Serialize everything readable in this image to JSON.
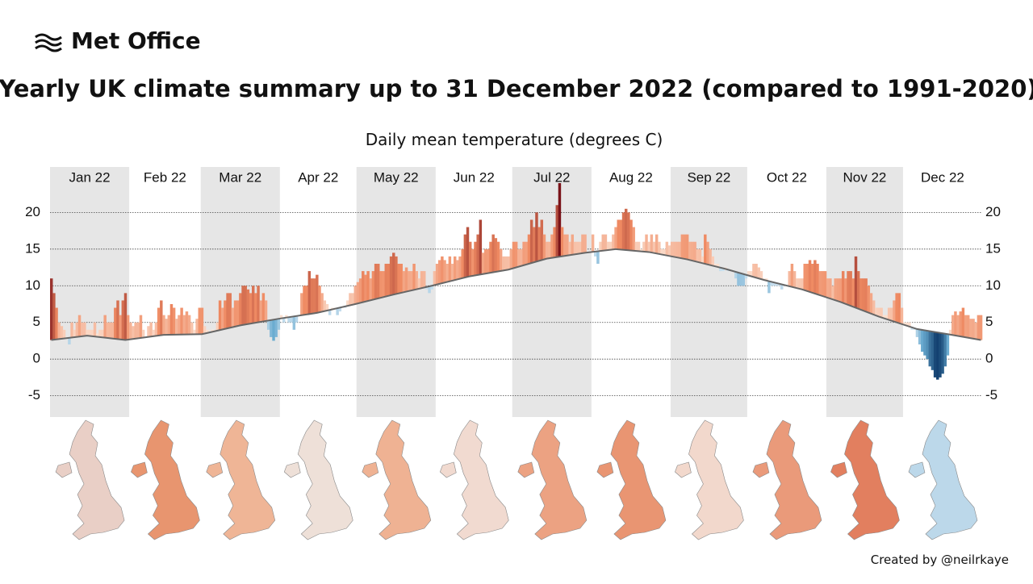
{
  "header": {
    "logo": "Met Office",
    "title": "Yearly UK climate summary up to 31 December 2022 (compared to 1991-2020)"
  },
  "footer": {
    "credit": "Created by @neilrkaye"
  },
  "chart_data": {
    "type": "bar",
    "title": "Daily mean temperature (degrees C)",
    "months": [
      "Jan 22",
      "Feb 22",
      "Mar 22",
      "Apr 22",
      "May 22",
      "Jun 22",
      "Jul 22",
      "Aug 22",
      "Sep 22",
      "Oct 22",
      "Nov 22",
      "Dec 22"
    ],
    "values": [
      11,
      9,
      7,
      5,
      4.5,
      4,
      3,
      2,
      5,
      4,
      5,
      6,
      5,
      5,
      4,
      4,
      4,
      5,
      3.5,
      4,
      4,
      6,
      5,
      5,
      5,
      7,
      8,
      6,
      8,
      9,
      6,
      5,
      4.5,
      5,
      5,
      6,
      4,
      3,
      4.5,
      5,
      4,
      5,
      7,
      8,
      6,
      5.5,
      6,
      7.5,
      7,
      5.5,
      6,
      7,
      6,
      6.5,
      6,
      5,
      4,
      5.5,
      7,
      7,
      4.5,
      4,
      3.5,
      4,
      4,
      5,
      8,
      7,
      8,
      9,
      9,
      7,
      8,
      8,
      9,
      10,
      10,
      9.5,
      9,
      10,
      9,
      10,
      8,
      9,
      8,
      4,
      3,
      2.5,
      3,
      4,
      6,
      5,
      6,
      5,
      5,
      4,
      5,
      6,
      9,
      10,
      10,
      12,
      11,
      11,
      11.5,
      10,
      9,
      8,
      7.5,
      6,
      7,
      7,
      6,
      6.5,
      7,
      7,
      8,
      9,
      9,
      10,
      10.5,
      11,
      12,
      11.5,
      12,
      11,
      12,
      13,
      13,
      12,
      12,
      13,
      13,
      14,
      14.5,
      14,
      13,
      13,
      12,
      12.5,
      12,
      12,
      13,
      12,
      11,
      12,
      12,
      9.5,
      9,
      9.5,
      12,
      13,
      13.5,
      14,
      13.5,
      13,
      14,
      13,
      14,
      13.5,
      14,
      15,
      17,
      18,
      16,
      15,
      16,
      17,
      19,
      14.5,
      15,
      15,
      16,
      17,
      16.5,
      16,
      15,
      14,
      14,
      14,
      15,
      16,
      16,
      15,
      15,
      16,
      16,
      17,
      19,
      18,
      20,
      18,
      19,
      17,
      16,
      16,
      17,
      18,
      21,
      24,
      18,
      17,
      17,
      16,
      17,
      16,
      16,
      16,
      17,
      17,
      14.5,
      14.5,
      17,
      14,
      13,
      16,
      17,
      17,
      16,
      16,
      17,
      18,
      19,
      19,
      20,
      20.5,
      20,
      19,
      18,
      16,
      16,
      15,
      16,
      17,
      16,
      17,
      16,
      17,
      16,
      15,
      15,
      16,
      15.5,
      16,
      16,
      16,
      16,
      17,
      17,
      17,
      16,
      16,
      16,
      15,
      15,
      14,
      17,
      16,
      15,
      14,
      13,
      13,
      12,
      12,
      12.5,
      12,
      12,
      12,
      11,
      10,
      10,
      10,
      11,
      12,
      12,
      13,
      13,
      12.5,
      12,
      11,
      11,
      9,
      10,
      10,
      10,
      10,
      9.5,
      10,
      10,
      12,
      13,
      12,
      11,
      11,
      11,
      13,
      13,
      13.5,
      13,
      13.5,
      13,
      12,
      12,
      12,
      11,
      11,
      10,
      11,
      11,
      11,
      12,
      11,
      12,
      12,
      11,
      14,
      12,
      11,
      11,
      11,
      10,
      9,
      8,
      7,
      7,
      7,
      6,
      6,
      7,
      7,
      8,
      9,
      9,
      7,
      5,
      5,
      5,
      4,
      4,
      3,
      2,
      1,
      0.5,
      0,
      -1,
      -1.5,
      -2.5,
      -2.8,
      -2.5,
      -2,
      -1,
      0.5,
      4,
      6,
      6.5,
      6,
      6.5,
      7,
      6,
      6,
      5.5,
      5.5,
      5,
      6,
      6
    ],
    "climatology": {
      "color": "#666666",
      "x": [
        1,
        15,
        30,
        45,
        60,
        75,
        90,
        105,
        120,
        135,
        150,
        165,
        180,
        195,
        210,
        222,
        235,
        250,
        265,
        280,
        295,
        310,
        325,
        340,
        352,
        365
      ],
      "values": [
        2.6,
        3.2,
        2.6,
        3.3,
        3.4,
        4.6,
        5.5,
        6.3,
        7.5,
        8.8,
        10,
        11.3,
        12.2,
        13.7,
        14.5,
        15,
        14.6,
        13.6,
        12.3,
        10.8,
        9.5,
        7.8,
        5.8,
        4.1,
        3.4,
        2.6
      ]
    },
    "ylim": [
      -7.9,
      26.2
    ],
    "yticks": [
      -5,
      0,
      5,
      10,
      15,
      20
    ],
    "grid": true
  }
}
